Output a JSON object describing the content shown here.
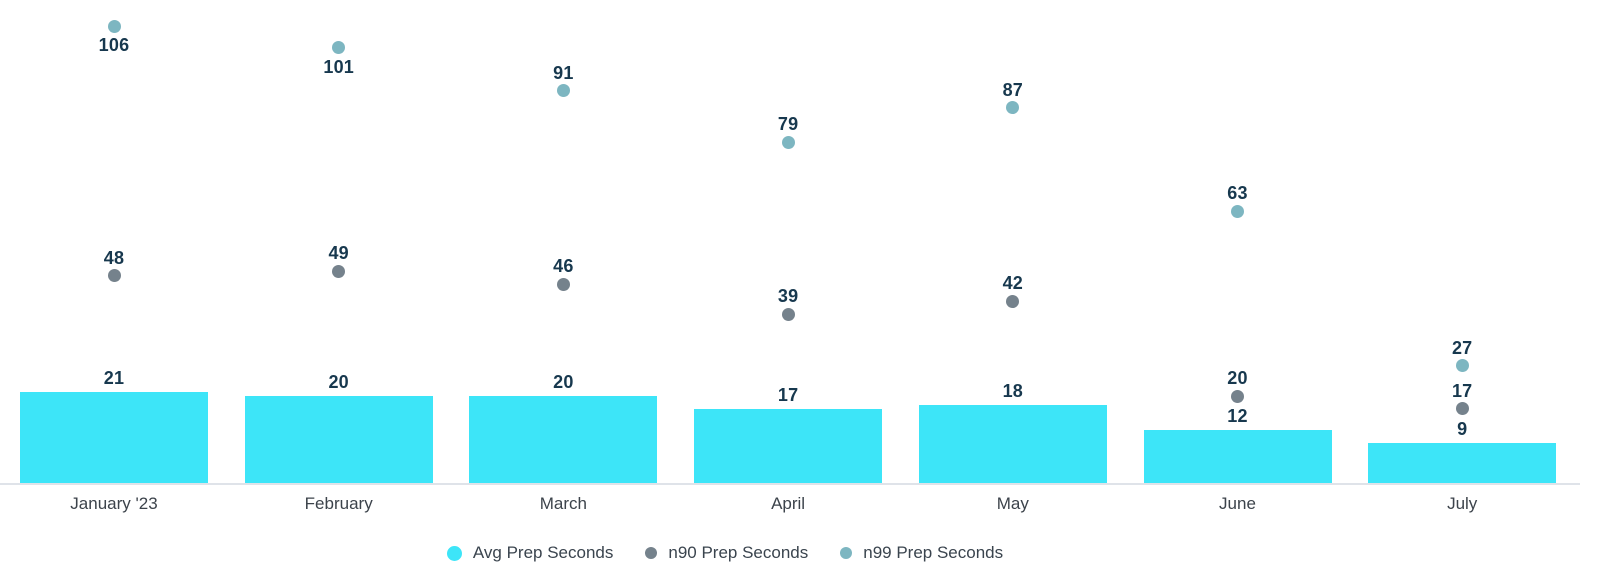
{
  "chart_data": {
    "type": "bar",
    "subtype": "bar-with-scatter-overlay",
    "categories": [
      "January '23",
      "February",
      "March",
      "April",
      "May",
      "June",
      "July"
    ],
    "series": [
      {
        "name": "Avg Prep Seconds",
        "type": "bar",
        "color": "#3de5f8",
        "values": [
          21,
          20,
          20,
          17,
          18,
          12,
          9
        ]
      },
      {
        "name": "n90 Prep Seconds",
        "type": "scatter",
        "color": "#75828c",
        "values": [
          48,
          49,
          46,
          39,
          42,
          20,
          17
        ]
      },
      {
        "name": "n99 Prep Seconds",
        "type": "scatter",
        "color": "#7db6c1",
        "values": [
          106,
          101,
          91,
          79,
          87,
          63,
          27
        ]
      }
    ],
    "title": "",
    "xlabel": "",
    "ylabel": "",
    "ylim": [
      0,
      112
    ],
    "grid": false,
    "y_axis_visible": false,
    "value_labels": true,
    "legend_position": "bottom"
  },
  "colors": {
    "value_label_text": "#17384e",
    "month_label_text": "#3c434b",
    "legend_text": "#3a444e",
    "axis_line": "#dfe3e9",
    "background": "#ffffff"
  }
}
